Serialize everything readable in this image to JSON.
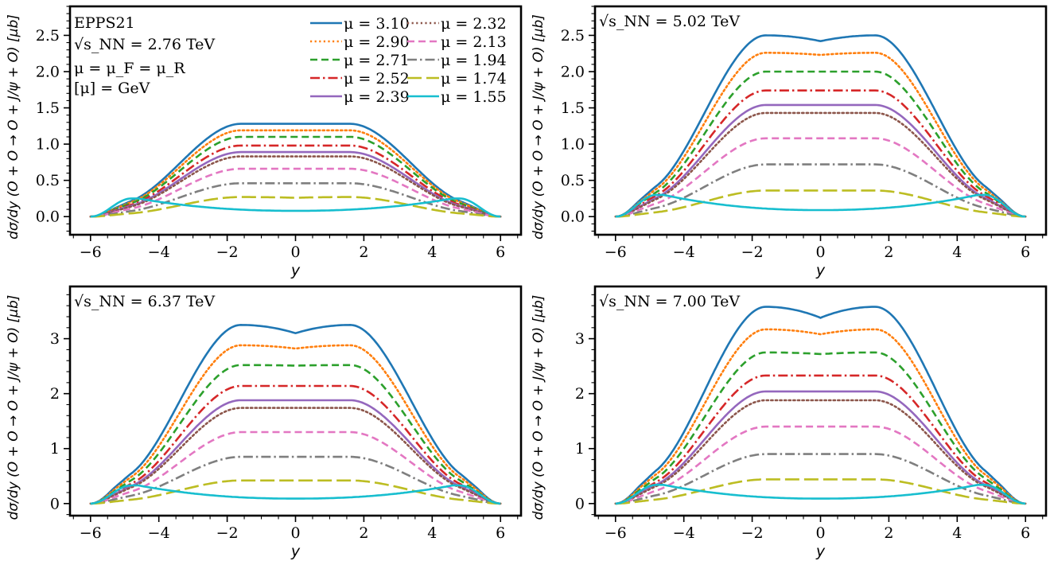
{
  "chart_data": [
    {
      "type": "line",
      "panel": "top-left",
      "energy_label": "√s_NN = 2.76 TeV",
      "extra_annotations": [
        "EPPS21",
        "μ = μ_F = μ_R",
        "[μ] = GeV"
      ],
      "xlabel": "y",
      "ylabel": "dσ/dy (O + O → O + J/ψ + O) [μb]",
      "xlim": [
        -6.6,
        6.6
      ],
      "ylim": [
        -0.25,
        2.9
      ],
      "xticks": [
        -6,
        -4,
        -2,
        0,
        2,
        4,
        6
      ],
      "yticks": [
        0.0,
        0.5,
        1.0,
        1.5,
        2.0,
        2.5
      ],
      "ytick_labels": [
        "0.0",
        "0.5",
        "1.0",
        "1.5",
        "2.0",
        "2.5"
      ],
      "legend": "top-right",
      "series": [
        {
          "name": "μ = 3.10",
          "peak": 1.28,
          "center": 1.28
        },
        {
          "name": "μ = 2.90",
          "peak": 1.19,
          "center": 1.19
        },
        {
          "name": "μ = 2.71",
          "peak": 1.1,
          "center": 1.1
        },
        {
          "name": "μ = 2.52",
          "peak": 0.98,
          "center": 0.98
        },
        {
          "name": "μ = 2.39",
          "peak": 0.89,
          "center": 0.89
        },
        {
          "name": "μ = 2.32",
          "peak": 0.83,
          "center": 0.83
        },
        {
          "name": "μ = 2.13",
          "peak": 0.66,
          "center": 0.66
        },
        {
          "name": "μ = 1.94",
          "peak": 0.46,
          "center": 0.46
        },
        {
          "name": "μ = 1.74",
          "peak": 0.27,
          "center": 0.26
        },
        {
          "name": "μ = 1.55",
          "peak": 0.25,
          "center": 0.08
        }
      ]
    },
    {
      "type": "line",
      "panel": "top-right",
      "energy_label": "√s_NN = 5.02 TeV",
      "xlabel": "y",
      "ylabel": "dσ/dy (O + O → O + J/ψ + O) [μb]",
      "xlim": [
        -6.6,
        6.6
      ],
      "ylim": [
        -0.25,
        2.9
      ],
      "xticks": [
        -6,
        -4,
        -2,
        0,
        2,
        4,
        6
      ],
      "yticks": [
        0.0,
        0.5,
        1.0,
        1.5,
        2.0,
        2.5
      ],
      "ytick_labels": [
        "0.0",
        "0.5",
        "1.0",
        "1.5",
        "2.0",
        "2.5"
      ],
      "series": [
        {
          "name": "μ = 3.10",
          "peak": 2.5,
          "center": 2.42
        },
        {
          "name": "μ = 2.90",
          "peak": 2.26,
          "center": 2.23
        },
        {
          "name": "μ = 2.71",
          "peak": 2.0,
          "center": 2.0
        },
        {
          "name": "μ = 2.52",
          "peak": 1.74,
          "center": 1.74
        },
        {
          "name": "μ = 2.39",
          "peak": 1.54,
          "center": 1.54
        },
        {
          "name": "μ = 2.32",
          "peak": 1.43,
          "center": 1.43
        },
        {
          "name": "μ = 2.13",
          "peak": 1.08,
          "center": 1.08
        },
        {
          "name": "μ = 1.94",
          "peak": 0.72,
          "center": 0.72
        },
        {
          "name": "μ = 1.74",
          "peak": 0.36,
          "center": 0.36
        },
        {
          "name": "μ = 1.55",
          "peak": 0.3,
          "center": 0.09
        }
      ]
    },
    {
      "type": "line",
      "panel": "bottom-left",
      "energy_label": "√s_NN = 6.37 TeV",
      "xlabel": "y",
      "ylabel": "dσ/dy (O + O → O + J/ψ + O) [μb]",
      "xlim": [
        -6.6,
        6.6
      ],
      "ylim": [
        -0.22,
        3.95
      ],
      "xticks": [
        -6,
        -4,
        -2,
        0,
        2,
        4,
        6
      ],
      "yticks": [
        0,
        1,
        2,
        3
      ],
      "ytick_labels": [
        "0",
        "1",
        "2",
        "3"
      ],
      "series": [
        {
          "name": "μ = 3.10",
          "peak": 3.25,
          "center": 3.1
        },
        {
          "name": "μ = 2.90",
          "peak": 2.88,
          "center": 2.82
        },
        {
          "name": "μ = 2.71",
          "peak": 2.52,
          "center": 2.51
        },
        {
          "name": "μ = 2.52",
          "peak": 2.14,
          "center": 2.14
        },
        {
          "name": "μ = 2.39",
          "peak": 1.88,
          "center": 1.88
        },
        {
          "name": "μ = 2.32",
          "peak": 1.74,
          "center": 1.74
        },
        {
          "name": "μ = 2.13",
          "peak": 1.3,
          "center": 1.3
        },
        {
          "name": "μ = 1.94",
          "peak": 0.85,
          "center": 0.85
        },
        {
          "name": "μ = 1.74",
          "peak": 0.42,
          "center": 0.42
        },
        {
          "name": "μ = 1.55",
          "peak": 0.33,
          "center": 0.09
        }
      ]
    },
    {
      "type": "line",
      "panel": "bottom-right",
      "energy_label": "√s_NN = 7.00 TeV",
      "xlabel": "y",
      "ylabel": "dσ/dy (O + O → O + J/ψ + O) [μb]",
      "xlim": [
        -6.6,
        6.6
      ],
      "ylim": [
        -0.22,
        3.95
      ],
      "xticks": [
        -6,
        -4,
        -2,
        0,
        2,
        4,
        6
      ],
      "yticks": [
        0,
        1,
        2,
        3
      ],
      "ytick_labels": [
        "0",
        "1",
        "2",
        "3"
      ],
      "series": [
        {
          "name": "μ = 3.10",
          "peak": 3.58,
          "center": 3.38
        },
        {
          "name": "μ = 2.90",
          "peak": 3.17,
          "center": 3.08
        },
        {
          "name": "μ = 2.71",
          "peak": 2.75,
          "center": 2.72
        },
        {
          "name": "μ = 2.52",
          "peak": 2.33,
          "center": 2.33
        },
        {
          "name": "μ = 2.39",
          "peak": 2.04,
          "center": 2.04
        },
        {
          "name": "μ = 2.32",
          "peak": 1.88,
          "center": 1.88
        },
        {
          "name": "μ = 2.13",
          "peak": 1.4,
          "center": 1.4
        },
        {
          "name": "μ = 1.94",
          "peak": 0.9,
          "center": 0.9
        },
        {
          "name": "μ = 1.74",
          "peak": 0.44,
          "center": 0.44
        },
        {
          "name": "μ = 1.55",
          "peak": 0.34,
          "center": 0.09
        }
      ]
    }
  ],
  "series_styles": [
    {
      "color": "#1f77b4",
      "dash": "solid"
    },
    {
      "color": "#ff7f0e",
      "dash": "dotted"
    },
    {
      "color": "#2ca02c",
      "dash": "dashed"
    },
    {
      "color": "#d62728",
      "dash": "dashdot"
    },
    {
      "color": "#9467bd",
      "dash": "solid"
    },
    {
      "color": "#8c564b",
      "dash": "dotted"
    },
    {
      "color": "#e377c2",
      "dash": "dashed"
    },
    {
      "color": "#7f7f7f",
      "dash": "dashdot"
    },
    {
      "color": "#bcbd22",
      "dash": "longdash"
    },
    {
      "color": "#17becf",
      "dash": "solid"
    }
  ]
}
